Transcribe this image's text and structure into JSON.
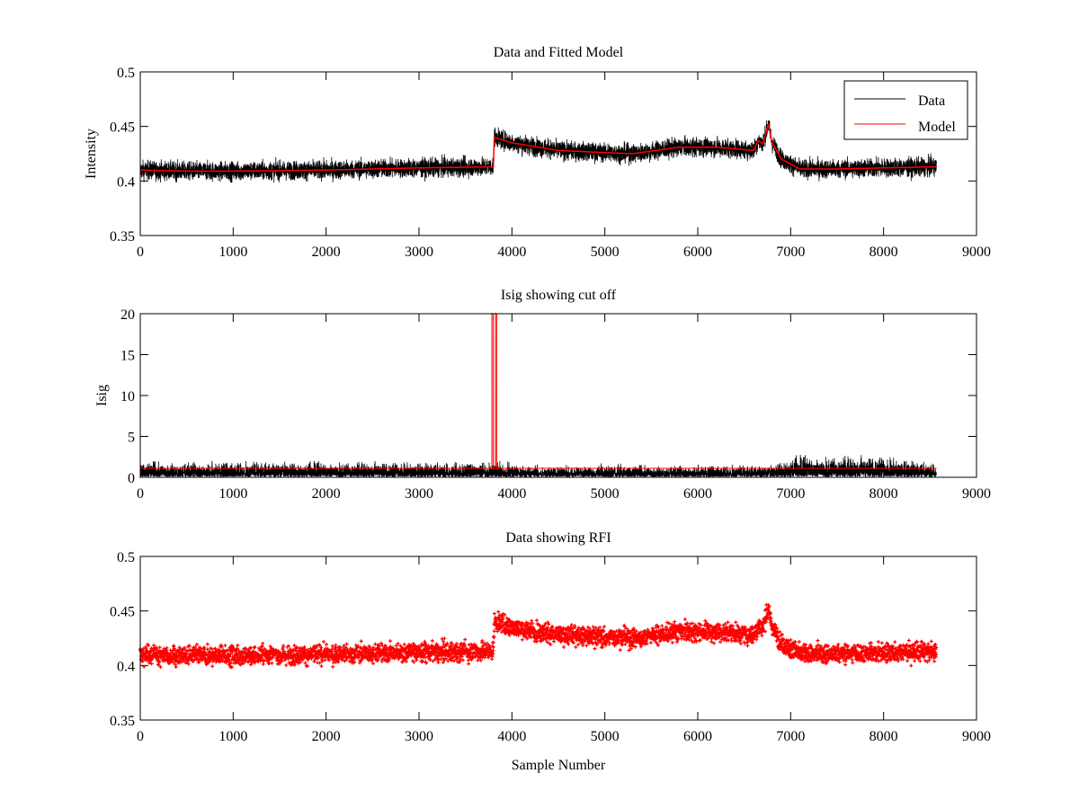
{
  "chart_data": [
    {
      "type": "line",
      "title": "Data and Fitted Model",
      "xlabel": "",
      "ylabel": "Intensity",
      "xlim": [
        0,
        9000
      ],
      "ylim": [
        0.35,
        0.5
      ],
      "xticks": [
        "0",
        "1000",
        "2000",
        "3000",
        "4000",
        "5000",
        "6000",
        "7000",
        "8000",
        "9000"
      ],
      "yticks": [
        "0.35",
        "0.4",
        "0.45",
        "0.5"
      ],
      "grid": false,
      "legend": {
        "placement": "top-right",
        "entries": [
          "Data",
          "Model"
        ]
      },
      "n_samples": 8570,
      "noise_amplitude": 0.006,
      "series": [
        {
          "name": "Data",
          "color": "#000000",
          "style": "line",
          "source": "model+noise"
        },
        {
          "name": "Model",
          "color": "#ff0000",
          "style": "line",
          "points": [
            [
              0,
              0.41
            ],
            [
              500,
              0.409
            ],
            [
              1000,
              0.409
            ],
            [
              2000,
              0.41
            ],
            [
              3000,
              0.412
            ],
            [
              3800,
              0.413
            ],
            [
              3810,
              0.44
            ],
            [
              4000,
              0.435
            ],
            [
              4500,
              0.428
            ],
            [
              5000,
              0.426
            ],
            [
              5300,
              0.425
            ],
            [
              5800,
              0.431
            ],
            [
              6200,
              0.431
            ],
            [
              6600,
              0.428
            ],
            [
              6650,
              0.437
            ],
            [
              6700,
              0.434
            ],
            [
              6760,
              0.452
            ],
            [
              6800,
              0.435
            ],
            [
              6900,
              0.42
            ],
            [
              7100,
              0.411
            ],
            [
              7500,
              0.411
            ],
            [
              8000,
              0.412
            ],
            [
              8570,
              0.413
            ]
          ]
        }
      ]
    },
    {
      "type": "line",
      "title": "Isig showing cut off",
      "xlabel": "",
      "ylabel": "Isig",
      "xlim": [
        0,
        9000
      ],
      "ylim": [
        0,
        20
      ],
      "xticks": [
        "0",
        "1000",
        "2000",
        "3000",
        "4000",
        "5000",
        "6000",
        "7000",
        "8000",
        "9000"
      ],
      "yticks": [
        "0",
        "5",
        "10",
        "15",
        "20"
      ],
      "grid": false,
      "series": [
        {
          "name": "Isig",
          "color": "#000000",
          "style": "line",
          "baseline": 0.7,
          "spread": [
            [
              0,
              1.3
            ],
            [
              3800,
              1.3
            ],
            [
              4300,
              1.0
            ],
            [
              6800,
              1.0
            ],
            [
              7000,
              1.8
            ],
            [
              8000,
              1.8
            ],
            [
              8570,
              1.2
            ]
          ],
          "spikes": [
            [
              3784,
              40
            ],
            [
              3822,
              40
            ]
          ]
        },
        {
          "name": "Cut off",
          "color": "#ff0000",
          "style": "line",
          "level": 1.1,
          "spikes": [
            3784,
            3822
          ]
        }
      ]
    },
    {
      "type": "scatter",
      "title": "Data showing RFI",
      "xlabel": "Sample Number",
      "ylabel": "",
      "xlim": [
        0,
        9000
      ],
      "ylim": [
        0.35,
        0.5
      ],
      "xticks": [
        "0",
        "1000",
        "2000",
        "3000",
        "4000",
        "5000",
        "6000",
        "7000",
        "8000",
        "9000"
      ],
      "yticks": [
        "0.35",
        "0.4",
        "0.45",
        "0.5"
      ],
      "grid": false,
      "series": [
        {
          "name": "Data",
          "color": "#ff0000",
          "marker": "+",
          "source": "panel-1 data"
        }
      ]
    }
  ]
}
